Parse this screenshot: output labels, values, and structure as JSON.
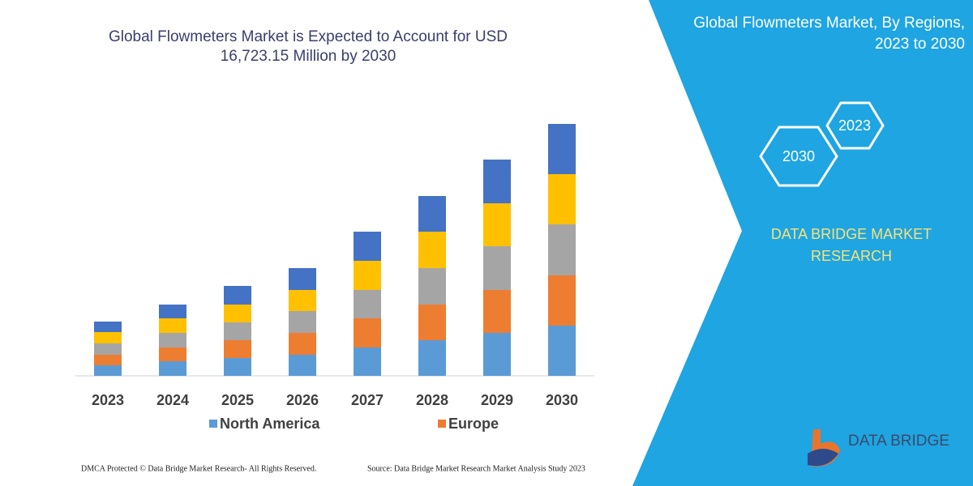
{
  "chart_data": {
    "type": "bar",
    "stacked": true,
    "title": "Global Flowmeters Market is Expected to Account for USD 16,723.15 Million by 2030",
    "categories": [
      "2023",
      "2024",
      "2025",
      "2026",
      "2027",
      "2028",
      "2029",
      "2030"
    ],
    "series": [
      {
        "name": "North America",
        "color": "#5b9bd5",
        "values": [
          13,
          18,
          22,
          26,
          35,
          44,
          53,
          62
        ]
      },
      {
        "name": "Europe",
        "color": "#ed7d31",
        "values": [
          13,
          17,
          22,
          27,
          36,
          44,
          53,
          62
        ]
      },
      {
        "color": "#a5a5a5",
        "values": [
          14,
          18,
          22,
          27,
          35,
          45,
          54,
          63
        ]
      },
      {
        "color": "#ffc000",
        "values": [
          14,
          18,
          22,
          26,
          36,
          45,
          53,
          62
        ]
      },
      {
        "color": "#4472c4",
        "values": [
          13,
          17,
          23,
          27,
          36,
          44,
          54,
          62
        ]
      }
    ],
    "ylim": [
      0,
      320
    ]
  },
  "panel": {
    "title": "Global Flowmeters Market, By Regions, 2023 to 2030",
    "hex_top": "2023",
    "hex_bottom": "2030",
    "brand": "DATA BRIDGE MARKET RESEARCH",
    "logo": "DATA BRIDGE"
  },
  "footer": {
    "left": "DMCA Protected © Data Bridge Market Research-  All Rights Reserved.",
    "right": "Source: Data Bridge Market Research  Market Analysis Study 2023"
  }
}
